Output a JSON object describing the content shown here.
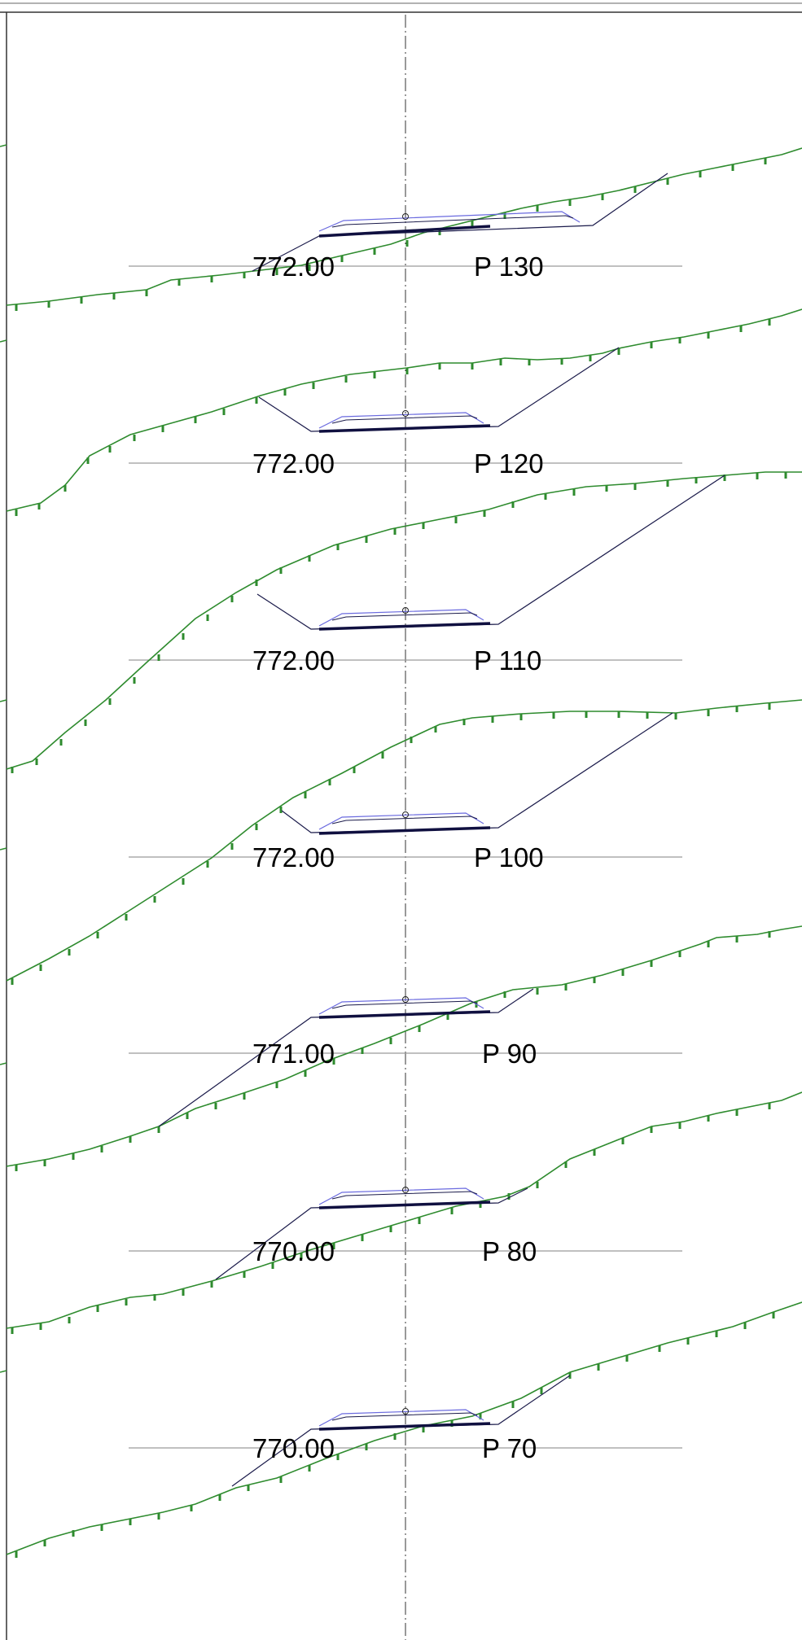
{
  "colors": {
    "terrain": "#2e8b2e",
    "terrain_tick": "#2e8b2e",
    "design": "#1a1a4a",
    "pavement": "#6a6adf",
    "datum": "#9a9a9a",
    "axis": "#333333",
    "frame": "#555555"
  },
  "sections": [
    {
      "id": "p130",
      "station_label": "P 130",
      "datum_label": "772.00"
    },
    {
      "id": "p120",
      "station_label": "P 120",
      "datum_label": "772.00"
    },
    {
      "id": "p110",
      "station_label": "P 110",
      "datum_label": "772.00"
    },
    {
      "id": "p100",
      "station_label": "P 100",
      "datum_label": "772.00"
    },
    {
      "id": "p90",
      "station_label": "P 90",
      "datum_label": "771.00"
    },
    {
      "id": "p80",
      "station_label": "P 80",
      "datum_label": "770.00"
    },
    {
      "id": "p70",
      "station_label": "P 70",
      "datum_label": "770.00"
    }
  ]
}
